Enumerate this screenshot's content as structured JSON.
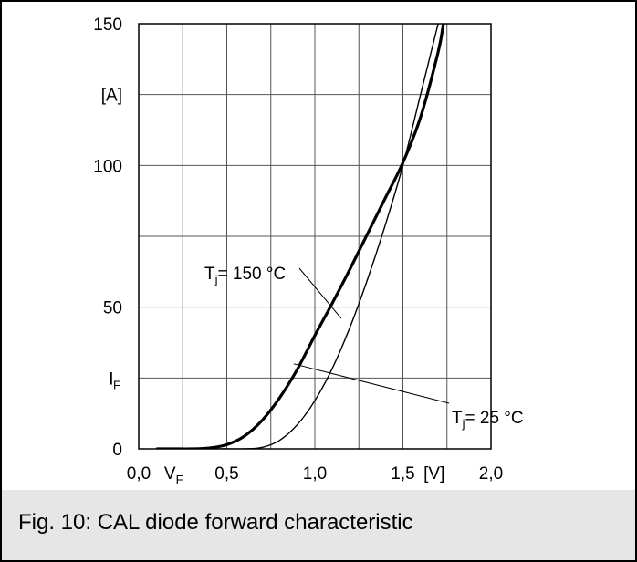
{
  "caption": "Fig. 10: CAL diode forward characteristic",
  "chart_data": {
    "type": "line",
    "title": "",
    "xlabel": "V",
    "xlabel_sub": "F",
    "xunit": "[V]",
    "ylabel": "I",
    "ylabel_sub": "F",
    "yunit": "[A]",
    "xlim": [
      0.0,
      2.0
    ],
    "ylim": [
      0,
      150
    ],
    "x_ticks": [
      {
        "value": 0.0,
        "label": "0,0"
      },
      {
        "value": 0.5,
        "label": "0,5"
      },
      {
        "value": 1.0,
        "label": "1,0"
      },
      {
        "value": 1.5,
        "label": "1,5"
      },
      {
        "value": 2.0,
        "label": "2,0"
      }
    ],
    "y_ticks": [
      {
        "value": 0,
        "label": "0"
      },
      {
        "value": 50,
        "label": "50"
      },
      {
        "value": 100,
        "label": "100"
      },
      {
        "value": 150,
        "label": "150"
      }
    ],
    "grid": true,
    "grid_x_step": 0.25,
    "grid_y_step": 25,
    "series": [
      {
        "name": "T_j = 150 °C",
        "name_main": "T",
        "name_sub": "j",
        "name_rest": "= 150 °C",
        "color": "#000000",
        "emphasis": "thick",
        "x": [
          0.1,
          0.2,
          0.3,
          0.4,
          0.5,
          0.6,
          0.7,
          0.8,
          0.9,
          1.0,
          1.1,
          1.2,
          1.3,
          1.4,
          1.5,
          1.6,
          1.7,
          1.73
        ],
        "y": [
          0,
          0,
          0,
          0.3,
          1.5,
          4.5,
          10,
          18,
          28,
          40,
          51.5,
          63.5,
          76,
          88.5,
          101,
          117,
          140,
          150
        ]
      },
      {
        "name": "T_j = 25 °C",
        "name_main": "T",
        "name_sub": "j",
        "name_rest": "= 25 °C",
        "color": "#000000",
        "emphasis": "thin",
        "x": [
          0.1,
          0.5,
          0.6,
          0.7,
          0.8,
          0.9,
          1.0,
          1.1,
          1.2,
          1.3,
          1.4,
          1.5,
          1.6,
          1.7
        ],
        "y": [
          0,
          0,
          0,
          0.5,
          3,
          8.5,
          17,
          28.5,
          43,
          60,
          79,
          100,
          125,
          150
        ]
      }
    ],
    "annotations": [
      {
        "series": 0,
        "text_main": "T",
        "text_sub": "j",
        "text_rest": "= 150 °C",
        "point": [
          1.15,
          46
        ]
      },
      {
        "series": 1,
        "text_main": "T",
        "text_sub": "j",
        "text_rest": "= 25 °C",
        "point": [
          0.88,
          30
        ]
      }
    ]
  }
}
